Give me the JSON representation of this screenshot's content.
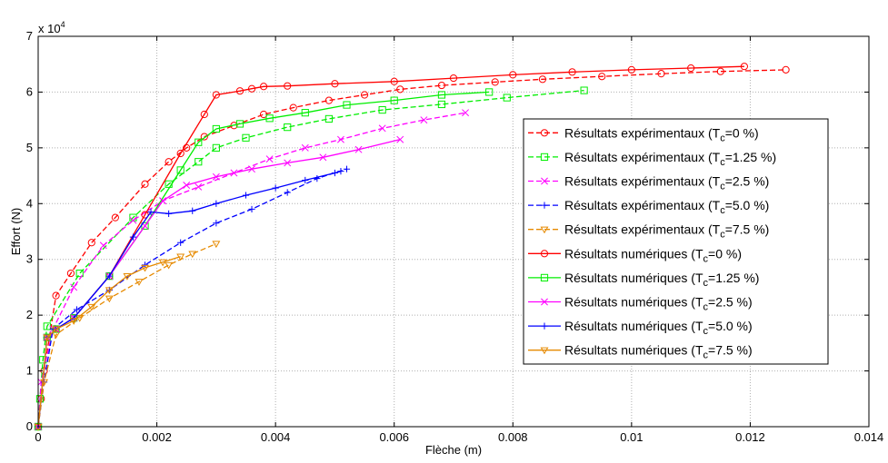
{
  "chart_data": {
    "type": "line",
    "xlabel": "Flèche (m)",
    "ylabel": "Effort (N)",
    "y_exponent_label": "x 10",
    "y_exponent_power": "4",
    "xlim": [
      0,
      0.014
    ],
    "ylim": [
      0,
      70000
    ],
    "x_ticks": [
      {
        "value": 0,
        "label": "0"
      },
      {
        "value": 0.002,
        "label": "0.002"
      },
      {
        "value": 0.004,
        "label": "0.004"
      },
      {
        "value": 0.006,
        "label": "0.006"
      },
      {
        "value": 0.008,
        "label": "0.008"
      },
      {
        "value": 0.01,
        "label": "0.01"
      },
      {
        "value": 0.012,
        "label": "0.012"
      },
      {
        "value": 0.014,
        "label": "0.014"
      }
    ],
    "y_ticks": [
      {
        "value": 0,
        "label": "0"
      },
      {
        "value": 10000,
        "label": "1"
      },
      {
        "value": 20000,
        "label": "2"
      },
      {
        "value": 30000,
        "label": "3"
      },
      {
        "value": 40000,
        "label": "4"
      },
      {
        "value": 50000,
        "label": "5"
      },
      {
        "value": 60000,
        "label": "6"
      },
      {
        "value": 70000,
        "label": "7"
      }
    ],
    "grid": true,
    "legend_position": "right",
    "series": [
      {
        "name_main": "Résultats expérimentaux (T",
        "name_sub": "c",
        "name_tail": "=0 %)",
        "color": "#ff0000",
        "dash": true,
        "marker": "circle",
        "x": [
          0,
          5e-05,
          0.0001,
          0.0003,
          0.00055,
          0.0009,
          0.0013,
          0.0018,
          0.0022,
          0.0025,
          0.0028,
          0.0033,
          0.0038,
          0.0043,
          0.0049,
          0.0055,
          0.0061,
          0.0068,
          0.0077,
          0.0085,
          0.0095,
          0.0105,
          0.0115,
          0.0126
        ],
        "y": [
          0,
          5000,
          10000,
          23500,
          27500,
          33000,
          37500,
          43500,
          47500,
          50000,
          52000,
          54000,
          56000,
          57200,
          58500,
          59500,
          60500,
          61200,
          61800,
          62300,
          62800,
          63300,
          63700,
          64000
        ]
      },
      {
        "name_main": "Résultats expérimentaux (T",
        "name_sub": "c",
        "name_tail": "=1.25 %)",
        "color": "#00ee00",
        "dash": true,
        "marker": "square",
        "x": [
          0,
          3e-05,
          8e-05,
          0.00015,
          0.0007,
          0.0016,
          0.0022,
          0.0027,
          0.003,
          0.0035,
          0.0042,
          0.0049,
          0.0058,
          0.0068,
          0.0079,
          0.0092
        ],
        "y": [
          0,
          5000,
          12000,
          18000,
          27500,
          37500,
          43500,
          47500,
          50000,
          51800,
          53700,
          55200,
          56800,
          57800,
          59000,
          60300
        ]
      },
      {
        "name_main": "Résultats expérimentaux (T",
        "name_sub": "c",
        "name_tail": "=2.5 %)",
        "color": "#ff00ff",
        "dash": true,
        "marker": "x",
        "x": [
          0,
          5e-05,
          0.00025,
          0.0006,
          0.0011,
          0.0016,
          0.0021,
          0.0027,
          0.0033,
          0.0039,
          0.0045,
          0.0051,
          0.0058,
          0.0065,
          0.0072
        ],
        "y": [
          0,
          8000,
          17500,
          25000,
          32500,
          37000,
          40500,
          43000,
          45500,
          48000,
          50000,
          51500,
          53500,
          55000,
          56300
        ]
      },
      {
        "name_main": "Résultats expérimentaux (T",
        "name_sub": "c",
        "name_tail": "=5.0 %)",
        "color": "#0000ff",
        "dash": true,
        "marker": "plus",
        "x": [
          0,
          0.0001,
          0.00025,
          0.00065,
          0.0012,
          0.0018,
          0.0024,
          0.003,
          0.0036,
          0.0042,
          0.0047,
          0.0052
        ],
        "y": [
          0,
          8000,
          17500,
          21000,
          24500,
          29000,
          33000,
          36500,
          39000,
          42000,
          44500,
          46200
        ]
      },
      {
        "name_main": "Résultats expérimentaux (T",
        "name_sub": "c",
        "name_tail": "=7.5 %)",
        "color": "#e68a00",
        "dash": true,
        "marker": "triangle",
        "x": [
          0,
          0.0001,
          0.0003,
          0.0007,
          0.0012,
          0.0017,
          0.0022,
          0.0026,
          0.003
        ],
        "y": [
          0,
          8000,
          16500,
          19500,
          23000,
          26000,
          29000,
          31000,
          32800
        ]
      },
      {
        "name_main": "Résultats numériques (T",
        "name_sub": "c",
        "name_tail": "=0 %)",
        "color": "#ff0000",
        "dash": false,
        "marker": "circle",
        "x": [
          0,
          0.00015,
          0.0003,
          0.0006,
          0.0012,
          0.0018,
          0.0024,
          0.0028,
          0.003,
          0.0034,
          0.0036,
          0.0038,
          0.0042,
          0.005,
          0.006,
          0.007,
          0.008,
          0.009,
          0.01,
          0.011,
          0.0119
        ],
        "y": [
          0,
          16000,
          17500,
          19500,
          27000,
          38000,
          49000,
          56000,
          59500,
          60200,
          60600,
          61000,
          61100,
          61500,
          61900,
          62500,
          63100,
          63600,
          64000,
          64300,
          64600
        ]
      },
      {
        "name_main": "Résultats numériques (T",
        "name_sub": "c",
        "name_tail": "=1.25 %)",
        "color": "#00ee00",
        "dash": false,
        "marker": "square",
        "x": [
          0,
          0.00015,
          0.0003,
          0.0006,
          0.0012,
          0.0018,
          0.0024,
          0.0027,
          0.003,
          0.0034,
          0.0039,
          0.0045,
          0.0052,
          0.006,
          0.0068,
          0.0076
        ],
        "y": [
          0,
          16000,
          17500,
          19500,
          27000,
          36000,
          46000,
          51000,
          53400,
          54300,
          55300,
          56300,
          57700,
          58500,
          59500,
          60000
        ]
      },
      {
        "name_main": "Résultats numériques (T",
        "name_sub": "c",
        "name_tail": "=2.5 %)",
        "color": "#ff00ff",
        "dash": false,
        "marker": "x",
        "x": [
          0,
          0.00015,
          0.0003,
          0.0006,
          0.0012,
          0.0018,
          0.0021,
          0.0025,
          0.003,
          0.0036,
          0.0042,
          0.0048,
          0.0054,
          0.0061
        ],
        "y": [
          0,
          16000,
          17500,
          19500,
          27000,
          36000,
          40500,
          43300,
          44800,
          46200,
          47300,
          48300,
          49700,
          51500
        ]
      },
      {
        "name_main": "Résultats numériques (T",
        "name_sub": "c",
        "name_tail": "=5.0 %)",
        "color": "#0000ff",
        "dash": false,
        "marker": "plus",
        "x": [
          0,
          0.00015,
          0.0003,
          0.0006,
          0.0012,
          0.0016,
          0.0019,
          0.0022,
          0.0026,
          0.003,
          0.0035,
          0.004,
          0.0045,
          0.005,
          0.0051
        ],
        "y": [
          0,
          16000,
          17500,
          19500,
          27000,
          34000,
          38500,
          38200,
          38700,
          40000,
          41500,
          42800,
          44200,
          45500,
          45800
        ]
      },
      {
        "name_main": "Résultats numériques (T",
        "name_sub": "c",
        "name_tail": "=7.5 %)",
        "color": "#e68a00",
        "dash": false,
        "marker": "triangle",
        "x": [
          0,
          0.00015,
          0.0003,
          0.0006,
          0.0009,
          0.0012,
          0.0015,
          0.0018,
          0.0021,
          0.0024
        ],
        "y": [
          0,
          16000,
          17500,
          19000,
          21500,
          24500,
          27000,
          28500,
          29500,
          30500
        ]
      }
    ]
  }
}
